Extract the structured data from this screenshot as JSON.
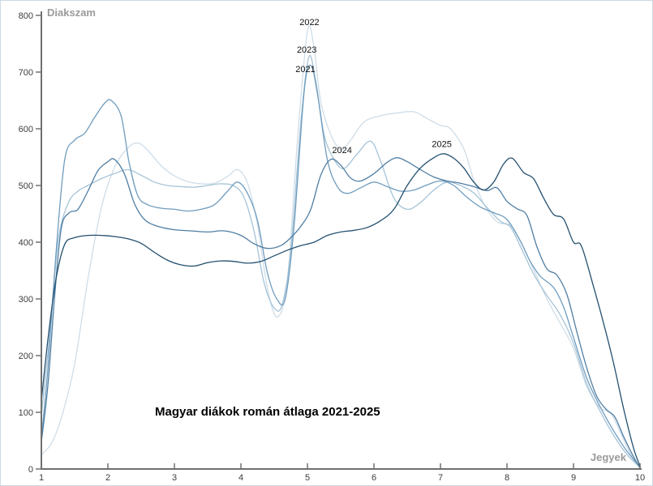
{
  "chart_data": {
    "type": "line",
    "title": "Magyar diákok román átlaga 2021-2025",
    "x_axis": {
      "label": "Jegyek",
      "min": 1,
      "max": 10,
      "ticks": [
        1,
        2,
        3,
        4,
        5,
        6,
        7,
        8,
        9,
        10
      ]
    },
    "y_axis": {
      "label": "Diakszam",
      "min": 0,
      "max": 800,
      "ticks": [
        0,
        100,
        200,
        300,
        400,
        500,
        600,
        700,
        800
      ]
    },
    "grid": false,
    "legend_position": "inline-annotations",
    "axis_color": "#707070",
    "series": [
      {
        "name": "2022",
        "color": "#cfdde8",
        "points": [
          [
            1,
            25
          ],
          [
            1.15,
            45
          ],
          [
            1.3,
            90
          ],
          [
            1.5,
            185
          ],
          [
            1.7,
            335
          ],
          [
            1.9,
            460
          ],
          [
            2.1,
            532
          ],
          [
            2.3,
            566
          ],
          [
            2.45,
            575
          ],
          [
            2.6,
            562
          ],
          [
            2.8,
            535
          ],
          [
            3,
            517
          ],
          [
            3.2,
            507
          ],
          [
            3.4,
            503
          ],
          [
            3.6,
            504
          ],
          [
            3.8,
            516
          ],
          [
            3.95,
            528
          ],
          [
            4.1,
            504
          ],
          [
            4.25,
            430
          ],
          [
            4.4,
            318
          ],
          [
            4.55,
            268
          ],
          [
            4.7,
            335
          ],
          [
            4.85,
            580
          ],
          [
            5,
            772
          ],
          [
            5.1,
            742
          ],
          [
            5.2,
            648
          ],
          [
            5.35,
            590
          ],
          [
            5.5,
            563
          ],
          [
            5.65,
            580
          ],
          [
            5.85,
            612
          ],
          [
            6.1,
            623
          ],
          [
            6.35,
            628
          ],
          [
            6.6,
            630
          ],
          [
            6.8,
            618
          ],
          [
            7,
            606
          ],
          [
            7.15,
            600
          ],
          [
            7.35,
            565
          ],
          [
            7.5,
            510
          ],
          [
            7.65,
            468
          ],
          [
            7.85,
            436
          ],
          [
            8.05,
            430
          ],
          [
            8.2,
            403
          ],
          [
            8.4,
            352
          ],
          [
            8.6,
            300
          ],
          [
            8.8,
            257
          ],
          [
            9,
            213
          ],
          [
            9.2,
            145
          ],
          [
            9.4,
            108
          ],
          [
            9.55,
            100
          ],
          [
            9.7,
            66
          ],
          [
            9.85,
            28
          ],
          [
            10,
            2
          ]
        ]
      },
      {
        "name": "2023",
        "color": "#a5c3d7",
        "points": [
          [
            1,
            95
          ],
          [
            1.12,
            230
          ],
          [
            1.25,
            400
          ],
          [
            1.4,
            468
          ],
          [
            1.55,
            490
          ],
          [
            1.7,
            500
          ],
          [
            1.9,
            512
          ],
          [
            2.1,
            521
          ],
          [
            2.3,
            528
          ],
          [
            2.5,
            518
          ],
          [
            2.7,
            506
          ],
          [
            2.9,
            500
          ],
          [
            3.1,
            498
          ],
          [
            3.3,
            497
          ],
          [
            3.5,
            500
          ],
          [
            3.7,
            503
          ],
          [
            3.9,
            499
          ],
          [
            4.05,
            478
          ],
          [
            4.2,
            418
          ],
          [
            4.35,
            328
          ],
          [
            4.5,
            284
          ],
          [
            4.62,
            290
          ],
          [
            4.75,
            385
          ],
          [
            4.9,
            610
          ],
          [
            5.02,
            726
          ],
          [
            5.12,
            688
          ],
          [
            5.25,
            590
          ],
          [
            5.4,
            546
          ],
          [
            5.55,
            530
          ],
          [
            5.75,
            556
          ],
          [
            5.95,
            578
          ],
          [
            6.1,
            543
          ],
          [
            6.3,
            478
          ],
          [
            6.5,
            458
          ],
          [
            6.7,
            470
          ],
          [
            6.9,
            492
          ],
          [
            7.1,
            506
          ],
          [
            7.3,
            500
          ],
          [
            7.5,
            487
          ],
          [
            7.7,
            461
          ],
          [
            7.9,
            437
          ],
          [
            8.05,
            427
          ],
          [
            8.2,
            393
          ],
          [
            8.4,
            344
          ],
          [
            8.6,
            306
          ],
          [
            8.8,
            272
          ],
          [
            9,
            222
          ],
          [
            9.2,
            150
          ],
          [
            9.4,
            102
          ],
          [
            9.6,
            60
          ],
          [
            9.8,
            26
          ],
          [
            10,
            3
          ]
        ]
      },
      {
        "name": "2021",
        "color": "#6f9cbe",
        "points": [
          [
            1,
            55
          ],
          [
            1.1,
            180
          ],
          [
            1.22,
            380
          ],
          [
            1.35,
            545
          ],
          [
            1.5,
            580
          ],
          [
            1.65,
            592
          ],
          [
            1.8,
            620
          ],
          [
            1.95,
            645
          ],
          [
            2.05,
            650
          ],
          [
            2.2,
            622
          ],
          [
            2.32,
            540
          ],
          [
            2.45,
            482
          ],
          [
            2.6,
            466
          ],
          [
            2.8,
            460
          ],
          [
            3,
            458
          ],
          [
            3.2,
            455
          ],
          [
            3.4,
            458
          ],
          [
            3.6,
            466
          ],
          [
            3.8,
            490
          ],
          [
            3.95,
            506
          ],
          [
            4.1,
            486
          ],
          [
            4.25,
            438
          ],
          [
            4.4,
            345
          ],
          [
            4.55,
            298
          ],
          [
            4.67,
            302
          ],
          [
            4.8,
            430
          ],
          [
            4.95,
            665
          ],
          [
            5.05,
            712
          ],
          [
            5.15,
            662
          ],
          [
            5.3,
            545
          ],
          [
            5.45,
            498
          ],
          [
            5.6,
            486
          ],
          [
            5.8,
            496
          ],
          [
            6,
            506
          ],
          [
            6.2,
            498
          ],
          [
            6.4,
            490
          ],
          [
            6.6,
            492
          ],
          [
            6.8,
            501
          ],
          [
            7,
            508
          ],
          [
            7.2,
            500
          ],
          [
            7.4,
            479
          ],
          [
            7.6,
            462
          ],
          [
            7.8,
            452
          ],
          [
            8,
            440
          ],
          [
            8.2,
            402
          ],
          [
            8.35,
            366
          ],
          [
            8.5,
            340
          ],
          [
            8.7,
            320
          ],
          [
            8.85,
            286
          ],
          [
            9,
            232
          ],
          [
            9.2,
            160
          ],
          [
            9.4,
            110
          ],
          [
            9.6,
            68
          ],
          [
            9.8,
            32
          ],
          [
            10,
            4
          ]
        ]
      },
      {
        "name": "2024",
        "color": "#4f7ea3",
        "points": [
          [
            1,
            48
          ],
          [
            1.1,
            150
          ],
          [
            1.2,
            305
          ],
          [
            1.3,
            425
          ],
          [
            1.42,
            452
          ],
          [
            1.55,
            458
          ],
          [
            1.7,
            490
          ],
          [
            1.85,
            526
          ],
          [
            2,
            542
          ],
          [
            2.1,
            546
          ],
          [
            2.25,
            520
          ],
          [
            2.4,
            468
          ],
          [
            2.55,
            440
          ],
          [
            2.75,
            428
          ],
          [
            3,
            422
          ],
          [
            3.25,
            420
          ],
          [
            3.5,
            418
          ],
          [
            3.75,
            420
          ],
          [
            4,
            412
          ],
          [
            4.2,
            397
          ],
          [
            4.4,
            389
          ],
          [
            4.6,
            394
          ],
          [
            4.75,
            408
          ],
          [
            4.9,
            428
          ],
          [
            5.05,
            458
          ],
          [
            5.2,
            518
          ],
          [
            5.35,
            546
          ],
          [
            5.5,
            536
          ],
          [
            5.65,
            513
          ],
          [
            5.8,
            508
          ],
          [
            6,
            521
          ],
          [
            6.2,
            541
          ],
          [
            6.35,
            549
          ],
          [
            6.5,
            542
          ],
          [
            6.7,
            528
          ],
          [
            6.9,
            515
          ],
          [
            7.1,
            508
          ],
          [
            7.3,
            504
          ],
          [
            7.5,
            498
          ],
          [
            7.7,
            491
          ],
          [
            7.85,
            496
          ],
          [
            8,
            472
          ],
          [
            8.15,
            459
          ],
          [
            8.3,
            447
          ],
          [
            8.45,
            392
          ],
          [
            8.6,
            353
          ],
          [
            8.75,
            342
          ],
          [
            8.9,
            308
          ],
          [
            9.05,
            242
          ],
          [
            9.2,
            178
          ],
          [
            9.35,
            128
          ],
          [
            9.5,
            104
          ],
          [
            9.62,
            92
          ],
          [
            9.75,
            58
          ],
          [
            9.9,
            22
          ],
          [
            10,
            2
          ]
        ]
      },
      {
        "name": "2025",
        "color": "#24506f",
        "points": [
          [
            1,
            120
          ],
          [
            1.1,
            230
          ],
          [
            1.22,
            335
          ],
          [
            1.35,
            396
          ],
          [
            1.5,
            408
          ],
          [
            1.7,
            412
          ],
          [
            1.9,
            412
          ],
          [
            2.1,
            410
          ],
          [
            2.3,
            406
          ],
          [
            2.5,
            398
          ],
          [
            2.7,
            382
          ],
          [
            2.9,
            368
          ],
          [
            3.1,
            360
          ],
          [
            3.3,
            358
          ],
          [
            3.5,
            364
          ],
          [
            3.7,
            367
          ],
          [
            3.9,
            366
          ],
          [
            4.1,
            363
          ],
          [
            4.3,
            366
          ],
          [
            4.5,
            376
          ],
          [
            4.7,
            386
          ],
          [
            4.9,
            394
          ],
          [
            5.1,
            400
          ],
          [
            5.3,
            412
          ],
          [
            5.5,
            418
          ],
          [
            5.7,
            421
          ],
          [
            5.9,
            426
          ],
          [
            6.1,
            438
          ],
          [
            6.3,
            458
          ],
          [
            6.5,
            500
          ],
          [
            6.7,
            531
          ],
          [
            6.9,
            549
          ],
          [
            7.05,
            556
          ],
          [
            7.2,
            548
          ],
          [
            7.35,
            531
          ],
          [
            7.5,
            506
          ],
          [
            7.65,
            492
          ],
          [
            7.8,
            506
          ],
          [
            7.95,
            538
          ],
          [
            8.08,
            548
          ],
          [
            8.25,
            523
          ],
          [
            8.4,
            512
          ],
          [
            8.55,
            478
          ],
          [
            8.7,
            449
          ],
          [
            8.85,
            441
          ],
          [
            9,
            400
          ],
          [
            9.12,
            393
          ],
          [
            9.3,
            322
          ],
          [
            9.45,
            258
          ],
          [
            9.6,
            188
          ],
          [
            9.75,
            108
          ],
          [
            9.9,
            38
          ],
          [
            10,
            5
          ]
        ]
      }
    ],
    "annotations": [
      {
        "text": "2022",
        "x": 5.03,
        "y": 783
      },
      {
        "text": "2023",
        "x": 4.99,
        "y": 734
      },
      {
        "text": "2021",
        "x": 4.97,
        "y": 700
      },
      {
        "text": "2024",
        "x": 5.52,
        "y": 557
      },
      {
        "text": "2025",
        "x": 7.02,
        "y": 568
      }
    ]
  }
}
